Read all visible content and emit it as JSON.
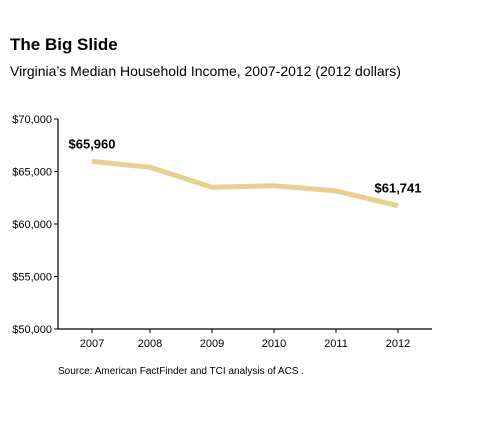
{
  "chart_data": {
    "type": "line",
    "title": "The Big Slide",
    "subtitle": "Virginia’s Median Household Income, 2007-2012 (2012 dollars)",
    "x": [
      "2007",
      "2008",
      "2009",
      "2010",
      "2011",
      "2012"
    ],
    "series": [
      {
        "values": [
          65960,
          65400,
          63500,
          63650,
          63150,
          61741
        ],
        "color": "#e8cf94"
      }
    ],
    "data_labels": [
      {
        "index": 0,
        "text": "$65,960"
      },
      {
        "index": 5,
        "text": "$61,741"
      }
    ],
    "ylim": [
      50000,
      70000
    ],
    "yticks": [
      50000,
      55000,
      60000,
      65000,
      70000
    ],
    "ytick_labels": [
      "$50,000",
      "$55,000",
      "$60,000",
      "$65,000",
      "$70,000"
    ],
    "xlabel": "",
    "ylabel": "",
    "grid": false,
    "source": "Source: American FactFinder and TCI analysis of ACS ."
  }
}
